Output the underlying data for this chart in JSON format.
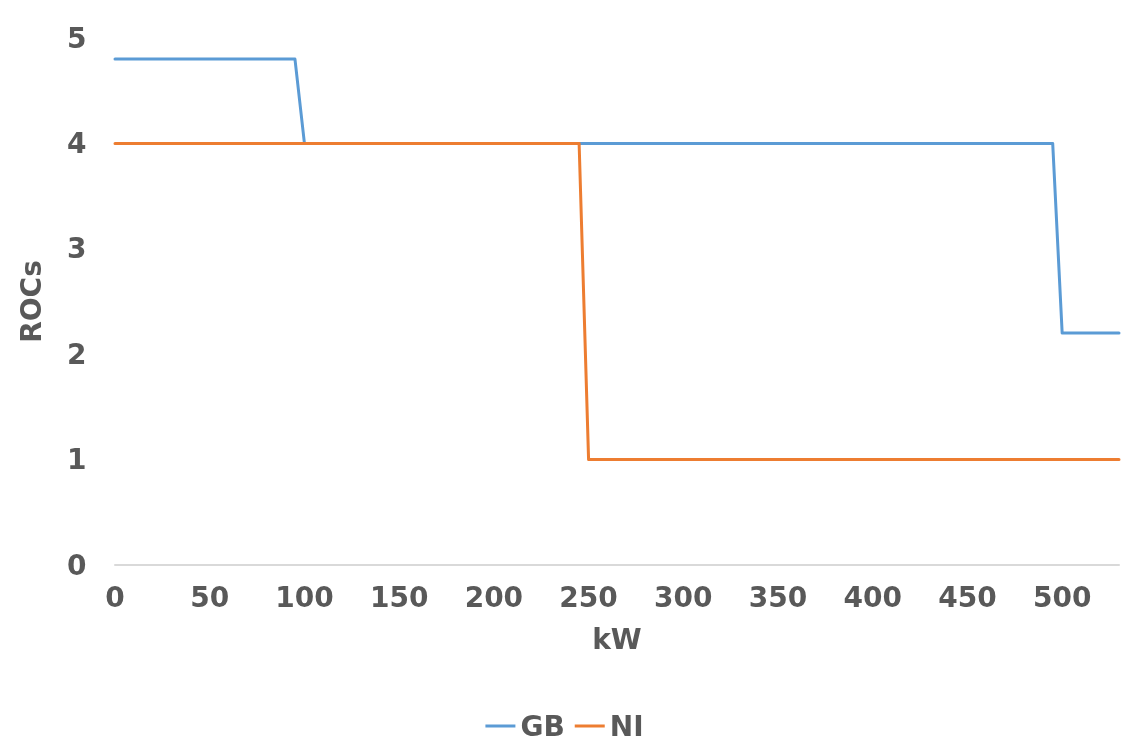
{
  "chart_data": {
    "type": "line",
    "xlabel": "kW",
    "ylabel": "ROCs",
    "xlim": [
      0,
      530
    ],
    "xticks": [
      0,
      50,
      100,
      150,
      200,
      250,
      300,
      350,
      400,
      450,
      500
    ],
    "ylim": [
      0,
      5
    ],
    "yticks": [
      0,
      1,
      2,
      3,
      4,
      5
    ],
    "series": [
      {
        "name": "GB",
        "color": "#5b9bd5",
        "x": [
          0,
          95,
          100,
          495,
          500,
          530
        ],
        "values": [
          4.8,
          4.8,
          4,
          4,
          2.2,
          2.2
        ]
      },
      {
        "name": "NI",
        "color": "#ed7d31",
        "x": [
          0,
          245,
          250,
          530
        ],
        "values": [
          4,
          4,
          1,
          1
        ]
      }
    ],
    "grid": false,
    "legend": "bottom",
    "marker": "none",
    "line_style": "solid"
  }
}
